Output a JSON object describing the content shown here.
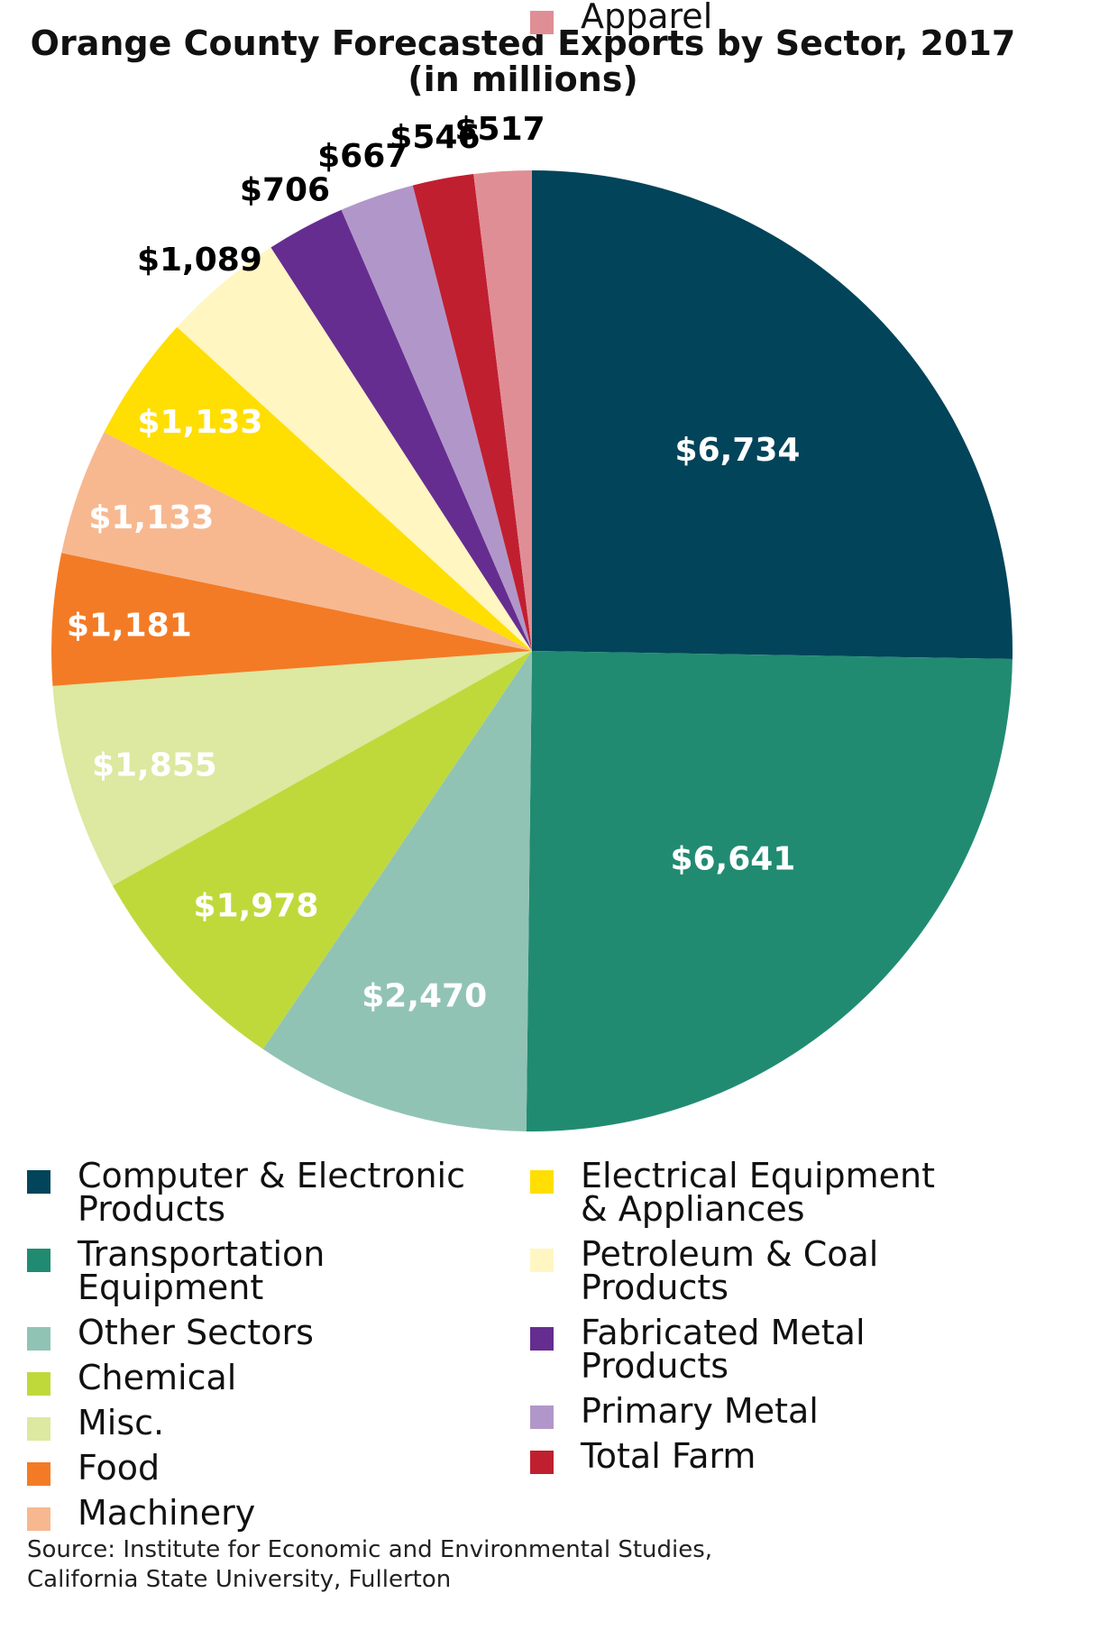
{
  "title_line1": "Orange County Forecasted Exports by Sector, 2017",
  "title_line2": "(in millions)",
  "chart_data": {
    "type": "pie",
    "title": "Orange County Forecasted Exports by Sector, 2017 (in millions)",
    "slices": [
      {
        "label": "Computer & Electronic Products",
        "value": 6734,
        "value_label": "$6,734",
        "color": "#02445a",
        "label_color": "#ffffff"
      },
      {
        "label": "Transportation Equipment",
        "value": 6641,
        "value_label": "$6,641",
        "color": "#218b72",
        "label_color": "#ffffff"
      },
      {
        "label": "Other Sectors",
        "value": 2470,
        "value_label": "$2,470",
        "color": "#91c3b5",
        "label_color": "#ffffff"
      },
      {
        "label": "Chemical",
        "value": 1978,
        "value_label": "$1,978",
        "color": "#bfd93b",
        "label_color": "#ffffff"
      },
      {
        "label": "Misc.",
        "value": 1855,
        "value_label": "$1,855",
        "color": "#dde8a0",
        "label_color": "#ffffff"
      },
      {
        "label": "Food",
        "value": 1181,
        "value_label": "$1,181",
        "color": "#f37b25",
        "label_color": "#ffffff"
      },
      {
        "label": "Machinery",
        "value": 1133,
        "value_label": "$1,133",
        "color": "#f7b890",
        "label_color": "#ffffff"
      },
      {
        "label": "Electrical Equipment & Appliances",
        "value": 1133,
        "value_label": "$1,133",
        "color": "#ffde02",
        "label_color": "#ffffff"
      },
      {
        "label": "Petroleum & Coal Products",
        "value": 1089,
        "value_label": "$1,089",
        "color": "#fff6c2",
        "label_color": "#000000"
      },
      {
        "label": "Fabricated Metal Products",
        "value": 706,
        "value_label": "$706",
        "color": "#662d91",
        "label_color": "#000000"
      },
      {
        "label": "Primary Metal",
        "value": 667,
        "value_label": "$667",
        "color": "#b197c9",
        "label_color": "#000000"
      },
      {
        "label": "Total Farm",
        "value": 546,
        "value_label": "$546",
        "color": "#c01f30",
        "label_color": "#000000"
      },
      {
        "label": "Apparel",
        "value": 517,
        "value_label": "$517",
        "color": "#e08e95",
        "label_color": "#000000"
      }
    ]
  },
  "legend": [
    {
      "label": "Computer & Electronic\nProducts",
      "color": "#02445a"
    },
    {
      "label": "Transportation\nEquipment",
      "color": "#218b72"
    },
    {
      "label": "Other Sectors",
      "color": "#91c3b5"
    },
    {
      "label": "Chemical",
      "color": "#bfd93b"
    },
    {
      "label": "Misc.",
      "color": "#dde8a0"
    },
    {
      "label": "Food",
      "color": "#f37b25"
    },
    {
      "label": "Machinery",
      "color": "#f7b890"
    },
    {
      "label": "Electrical Equipment\n& Appliances",
      "color": "#ffde02"
    },
    {
      "label": "Petroleum & Coal\nProducts",
      "color": "#fff6c2"
    },
    {
      "label": "Fabricated Metal\nProducts",
      "color": "#662d91"
    },
    {
      "label": "Primary Metal",
      "color": "#b197c9"
    },
    {
      "label": "Total Farm",
      "color": "#c01f30"
    },
    {
      "label": "Apparel",
      "color": "#e08e95"
    }
  ],
  "source": {
    "line1": "Source: Institute for Economic and Environmental Studies,",
    "line2": "California State University, Fullerton"
  }
}
